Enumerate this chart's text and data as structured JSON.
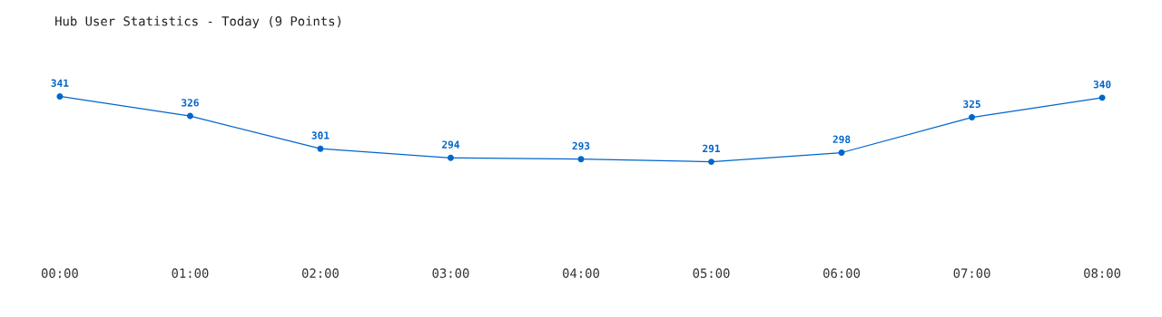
{
  "chart_data": {
    "type": "line",
    "title": "Hub User Statistics - Today (9 Points)",
    "categories": [
      "00:00",
      "01:00",
      "02:00",
      "03:00",
      "04:00",
      "05:00",
      "06:00",
      "07:00",
      "08:00"
    ],
    "series": [
      {
        "color": "#0066cc",
        "values": [
          341,
          326,
          301,
          294,
          293,
          291,
          298,
          325,
          340
        ]
      }
    ],
    "data_labels": true,
    "marker": "circle",
    "grid": false,
    "legend": false
  }
}
